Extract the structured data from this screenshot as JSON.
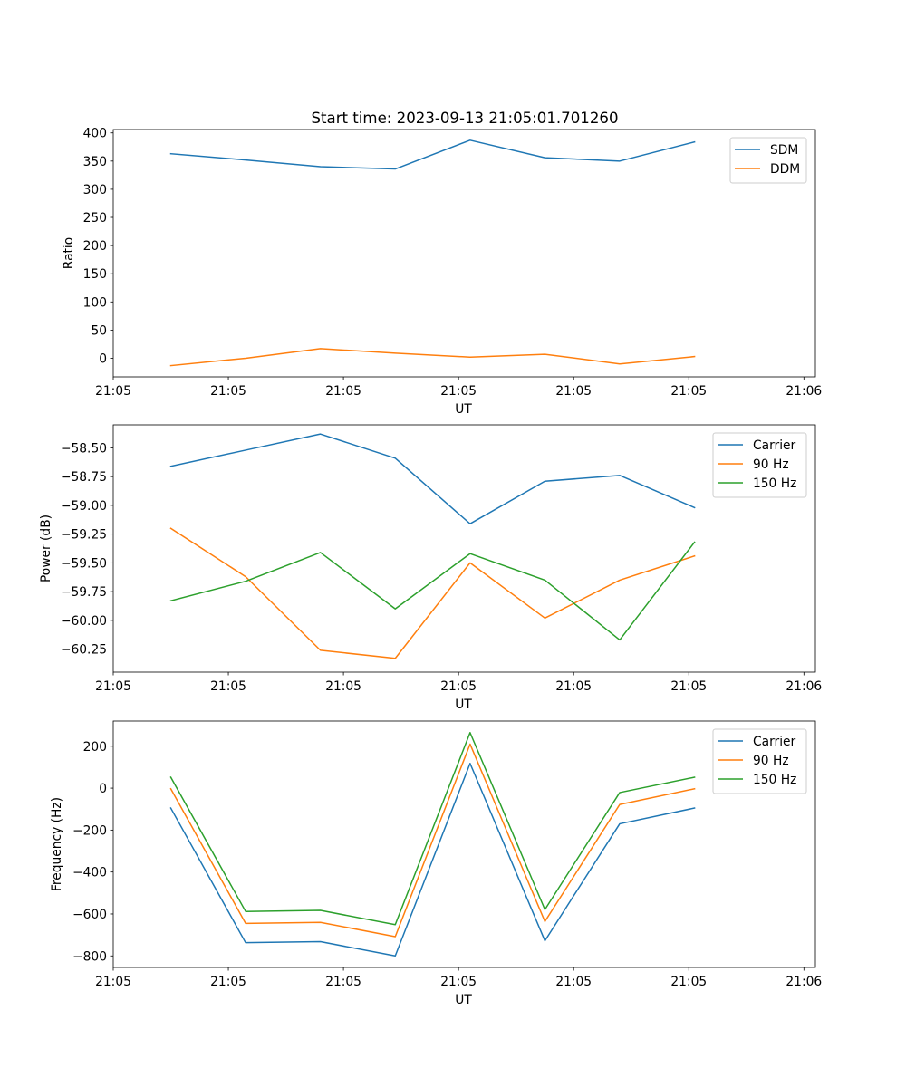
{
  "figure": {
    "title": "Start time: 2023-09-13 21:05:01.701260"
  },
  "chart_data": [
    {
      "type": "line",
      "ylabel": "Ratio",
      "xlabel": "UT",
      "x_tick_labels": [
        "21:05",
        "21:05",
        "21:05",
        "21:05",
        "21:05",
        "21:05",
        "21:06"
      ],
      "xlim": [
        0,
        6.1
      ],
      "x": [
        0.5,
        1.15,
        1.8,
        2.45,
        3.1,
        3.75,
        4.4,
        5.05
      ],
      "ylim": [
        -33,
        406
      ],
      "yticks": [
        0,
        50,
        100,
        150,
        200,
        250,
        300,
        350,
        400
      ],
      "ytick_labels": [
        "0",
        "50",
        "100",
        "150",
        "200",
        "250",
        "300",
        "350",
        "400"
      ],
      "legend": "upper right",
      "series": [
        {
          "name": "SDM",
          "color": "#1f77b4",
          "values": [
            363,
            352,
            340,
            336,
            387,
            356,
            350,
            384
          ]
        },
        {
          "name": "DDM",
          "color": "#ff7f0e",
          "values": [
            -13,
            0,
            17,
            9,
            2,
            7,
            -10,
            3
          ]
        }
      ]
    },
    {
      "type": "line",
      "ylabel": "Power (dB)",
      "xlabel": "UT",
      "x_tick_labels": [
        "21:05",
        "21:05",
        "21:05",
        "21:05",
        "21:05",
        "21:05",
        "21:06"
      ],
      "xlim": [
        0,
        6.1
      ],
      "x": [
        0.5,
        1.15,
        1.8,
        2.45,
        3.1,
        3.75,
        4.4,
        5.05
      ],
      "ylim": [
        -60.45,
        -58.3
      ],
      "yticks": [
        -58.5,
        -58.75,
        -59.0,
        -59.25,
        -59.5,
        -59.75,
        -60.0,
        -60.25
      ],
      "ytick_labels": [
        "−58.50",
        "−58.75",
        "−59.00",
        "−59.25",
        "−59.50",
        "−59.75",
        "−60.00",
        "−60.25"
      ],
      "legend": "upper right",
      "series": [
        {
          "name": "Carrier",
          "color": "#1f77b4",
          "values": [
            -58.66,
            -58.52,
            -58.38,
            -58.59,
            -59.16,
            -58.79,
            -58.74,
            -59.02
          ]
        },
        {
          "name": "90 Hz",
          "color": "#ff7f0e",
          "values": [
            -59.2,
            -59.62,
            -60.26,
            -60.33,
            -59.5,
            -59.98,
            -59.65,
            -59.44
          ]
        },
        {
          "name": "150 Hz",
          "color": "#2ca02c",
          "values": [
            -59.83,
            -59.66,
            -59.41,
            -59.9,
            -59.42,
            -59.65,
            -60.17,
            -59.32
          ]
        }
      ]
    },
    {
      "type": "line",
      "ylabel": "Frequency (Hz)",
      "xlabel": "UT",
      "x_tick_labels": [
        "21:05",
        "21:05",
        "21:05",
        "21:05",
        "21:05",
        "21:05",
        "21:06"
      ],
      "xlim": [
        0,
        6.1
      ],
      "x": [
        0.5,
        1.15,
        1.8,
        2.45,
        3.1,
        3.75,
        4.4,
        5.05
      ],
      "ylim": [
        -855,
        320
      ],
      "yticks": [
        200,
        0,
        -200,
        -400,
        -600,
        -800
      ],
      "ytick_labels": [
        "200",
        "0",
        "−200",
        "−400",
        "−600",
        "−800"
      ],
      "legend": "upper right",
      "series": [
        {
          "name": "Carrier",
          "color": "#1f77b4",
          "values": [
            -95,
            -737,
            -732,
            -800,
            118,
            -728,
            -170,
            -95
          ]
        },
        {
          "name": "90 Hz",
          "color": "#ff7f0e",
          "values": [
            -3,
            -645,
            -640,
            -708,
            210,
            -636,
            -78,
            -3
          ]
        },
        {
          "name": "150 Hz",
          "color": "#2ca02c",
          "values": [
            52,
            -588,
            -583,
            -651,
            265,
            -579,
            -21,
            52
          ]
        }
      ]
    }
  ]
}
